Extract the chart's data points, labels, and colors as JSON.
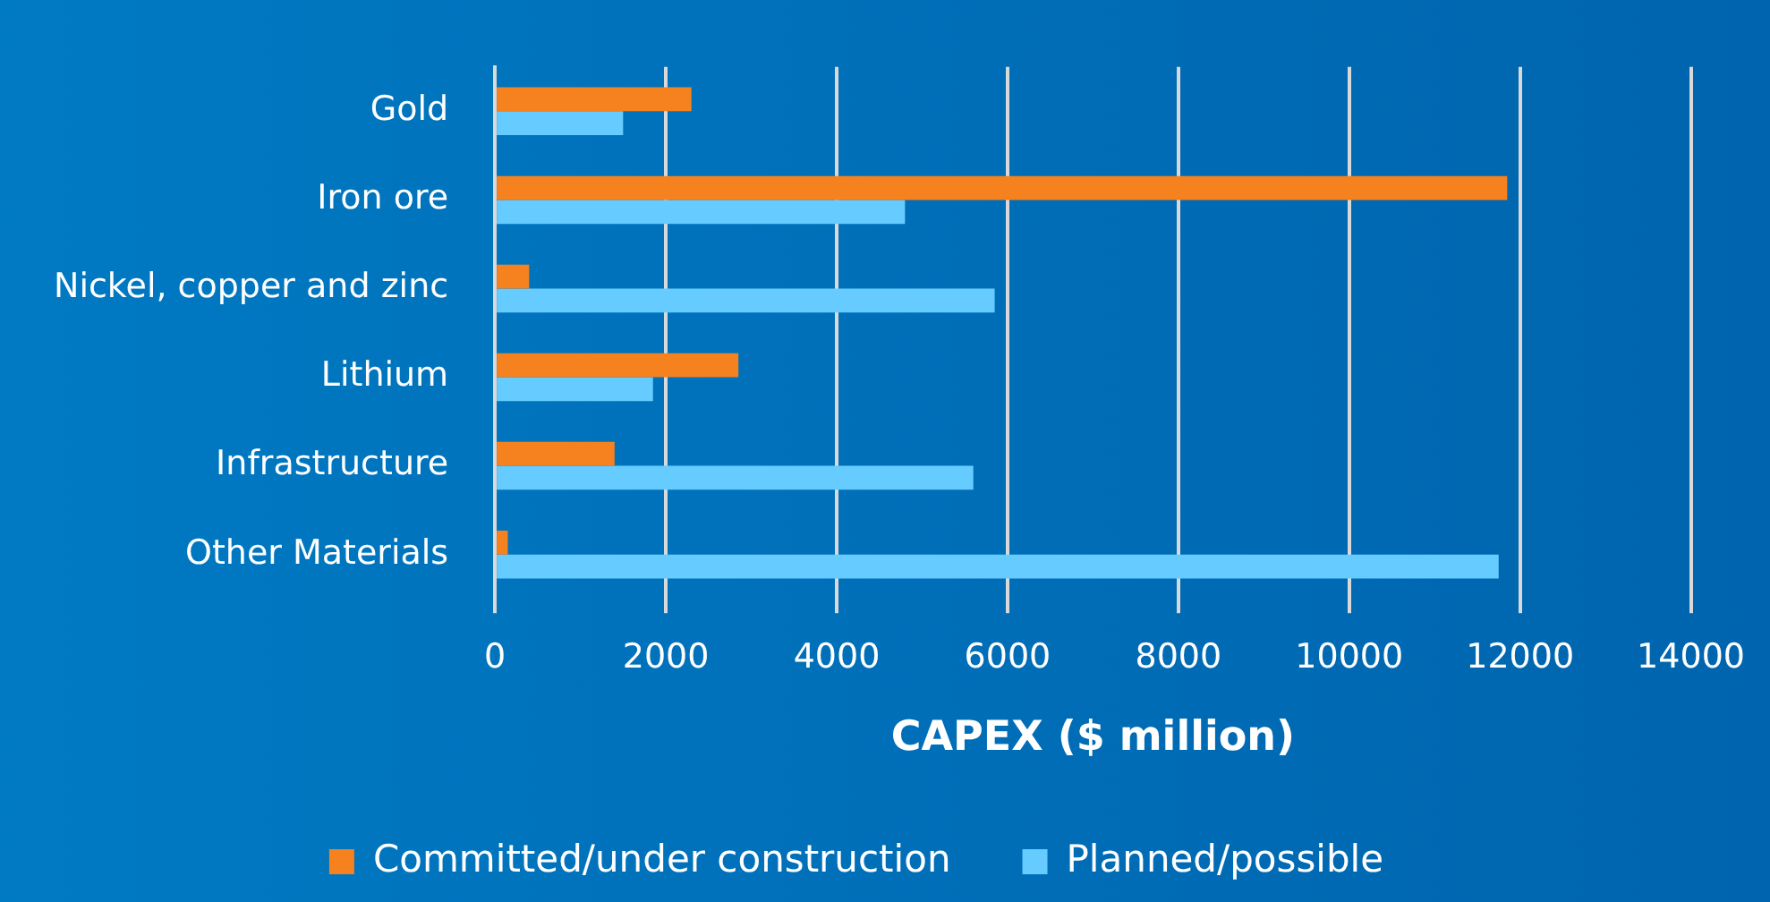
{
  "chart_data": {
    "type": "bar",
    "orientation": "horizontal",
    "xlabel": "CAPEX ($ million)",
    "categories": [
      "Gold",
      "Iron ore",
      "Nickel, copper and zinc",
      "Lithium",
      "Infrastructure",
      "Other Materials"
    ],
    "series": [
      {
        "name": "Committed/under construction",
        "color": "#f5821f",
        "values": [
          2300,
          11850,
          400,
          2850,
          1400,
          150
        ]
      },
      {
        "name": "Planned/possible",
        "color": "#66ccff",
        "values": [
          1500,
          4800,
          5850,
          1850,
          5600,
          11750
        ]
      }
    ],
    "xlim": [
      0,
      14000
    ],
    "xticks": [
      0,
      2000,
      4000,
      6000,
      8000,
      10000,
      12000,
      14000
    ],
    "grid": "x",
    "legend": "bottom"
  }
}
